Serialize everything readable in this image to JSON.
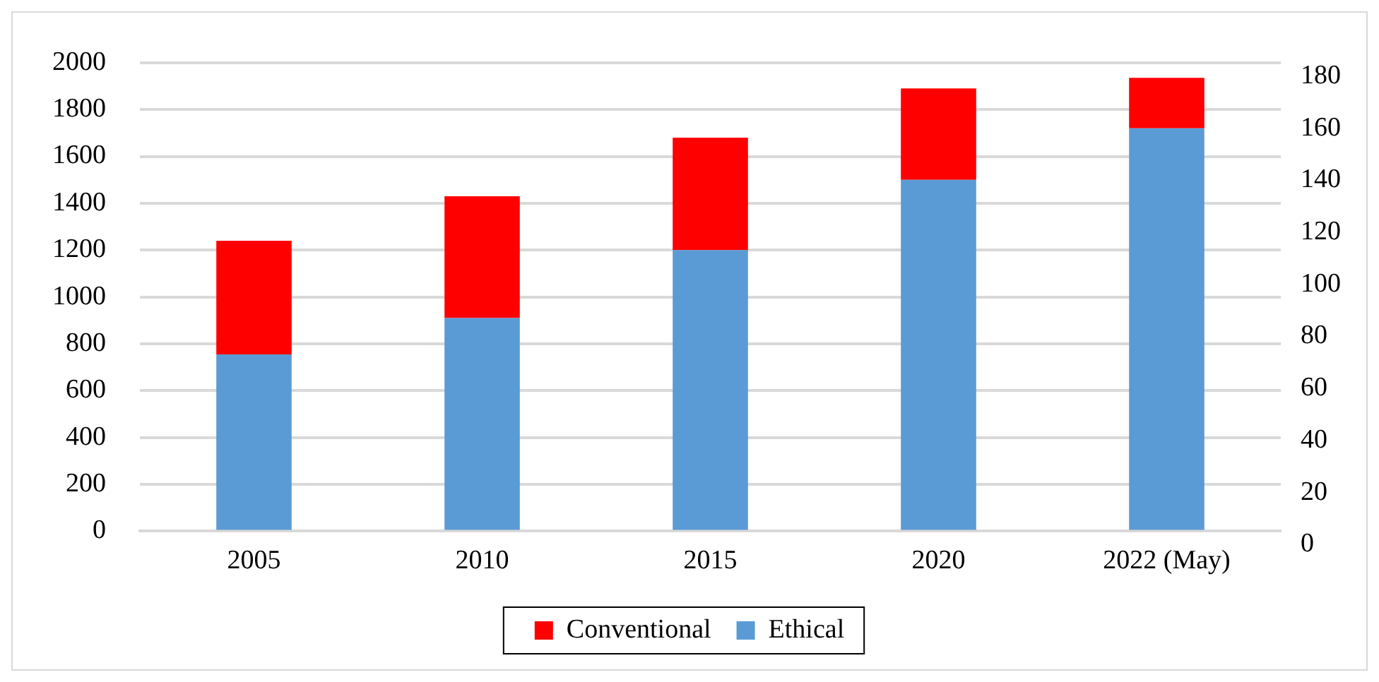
{
  "chart_data": {
    "type": "bar",
    "stacked": true,
    "categories": [
      "2005",
      "2010",
      "2015",
      "2020",
      "2022 (May)"
    ],
    "series": [
      {
        "name": "Ethical",
        "color": "#5b9bd5",
        "values": [
          755,
          910,
          1200,
          1500,
          1720
        ]
      },
      {
        "name": "Conventional",
        "color": "#ff0000",
        "values": [
          485,
          520,
          480,
          390,
          215
        ]
      }
    ],
    "ylim": [
      0,
      2000
    ],
    "yticks": [
      0,
      200,
      400,
      600,
      800,
      1000,
      1200,
      1400,
      1600,
      1800,
      2000
    ],
    "y2lim": [
      0,
      180
    ],
    "y2ticks": [
      0,
      20,
      40,
      60,
      80,
      100,
      120,
      140,
      160,
      180
    ],
    "grid": "y",
    "legend": "bottom"
  }
}
